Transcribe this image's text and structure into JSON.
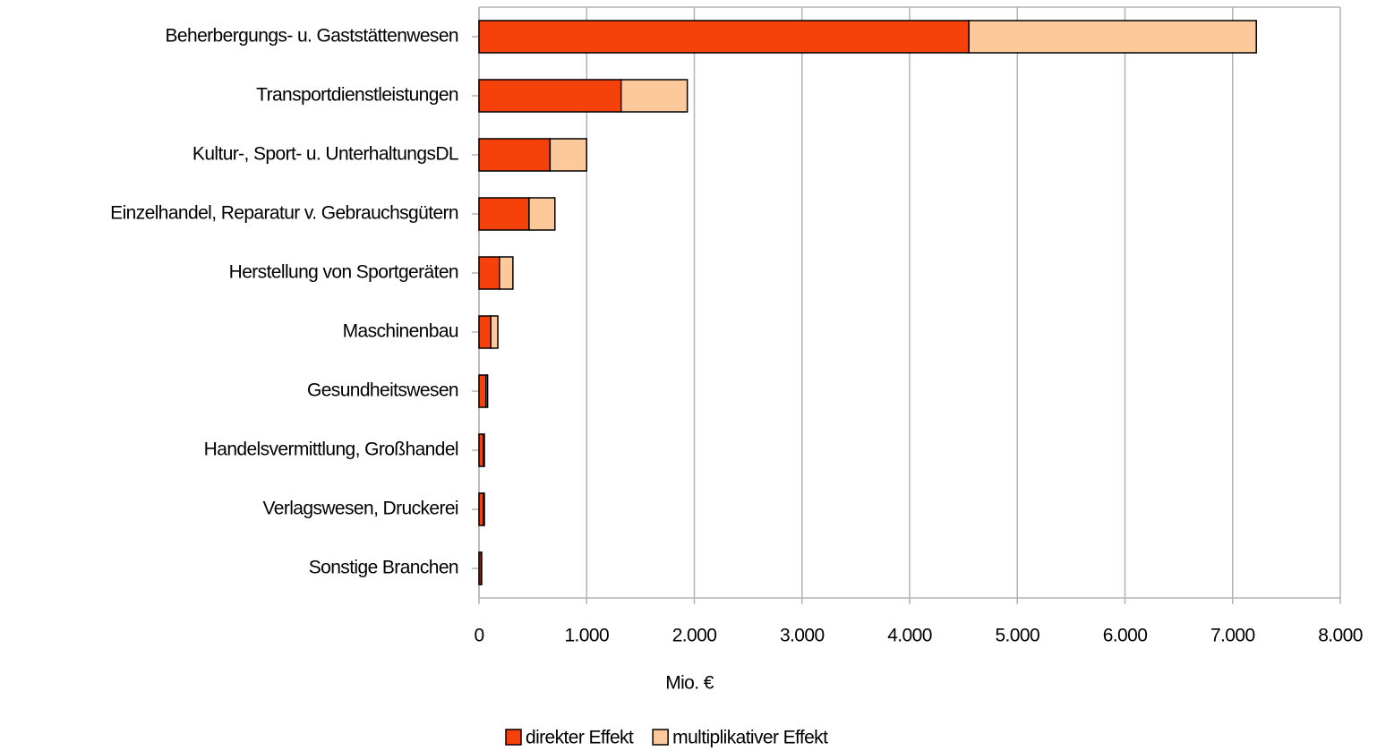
{
  "chart_data": {
    "type": "stacked_barh",
    "categories": [
      "Beherbergungs- u. Gaststättenwesen",
      "Transportdienstleistungen",
      "Kultur-, Sport- u. UnterhaltungsDL",
      "Einzelhandel, Reparatur v. Gebrauchsgütern",
      "Herstellung von Sportgeräten",
      "Maschinenbau",
      "Gesundheitswesen",
      "Handelsvermittlung, Großhandel",
      "Verlagswesen, Druckerei",
      "Sonstige Branchen"
    ],
    "series": [
      {
        "name": "direkter Effekt",
        "color": "#f5420a",
        "values": [
          4550,
          1320,
          660,
          465,
          190,
          110,
          65,
          40,
          40,
          20
        ]
      },
      {
        "name": "multiplikativer Effekt",
        "color": "#fdc99b",
        "values": [
          2670,
          615,
          340,
          240,
          125,
          65,
          15,
          10,
          10,
          5
        ]
      }
    ],
    "xlabel": "Mio. €",
    "xlim": [
      0,
      8000
    ],
    "xticks": [
      0,
      {
        "value": 1000,
        "label": "1.000"
      },
      {
        "value": 2000,
        "label": "2.000"
      },
      {
        "value": 3000,
        "label": "3.000"
      },
      {
        "value": 4000,
        "label": "4.000"
      },
      {
        "value": 5000,
        "label": "5.000"
      },
      {
        "value": 6000,
        "label": "6.000"
      },
      {
        "value": 7000,
        "label": "7.000"
      },
      {
        "value": 8000,
        "label": "8.000"
      }
    ],
    "grid": true,
    "legend": "bottom"
  }
}
